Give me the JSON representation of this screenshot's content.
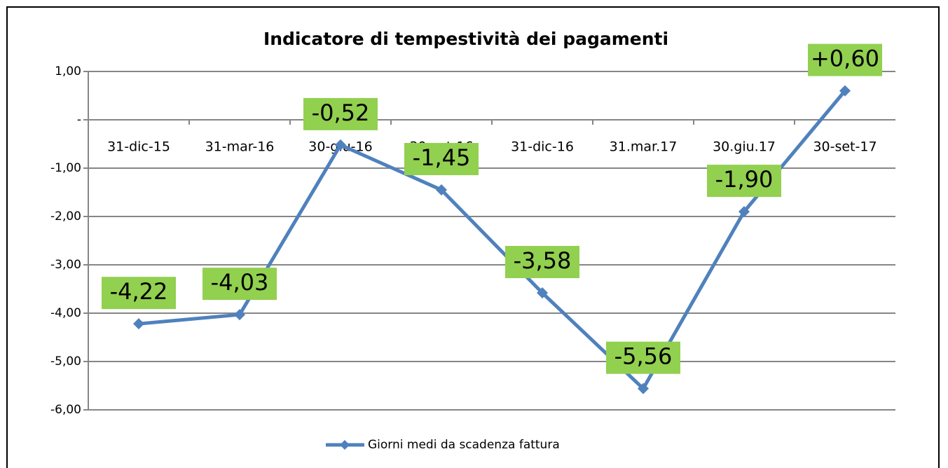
{
  "chart_data": {
    "type": "line",
    "title": "Indicatore di tempestività dei  pagamenti",
    "categories": [
      "31-dic-15",
      "31-mar-16",
      "30-giu-16",
      "30-set-16",
      "31-dic-16",
      "31.mar.17",
      "30.giu.17",
      "30-set-17"
    ],
    "series": [
      {
        "name": "Giorni medi da scadenza fattura",
        "color": "#4f81bd",
        "values": [
          -4.22,
          -4.03,
          -0.52,
          -1.45,
          -3.58,
          -5.56,
          -1.9,
          0.6
        ],
        "value_labels": [
          "-4,22",
          "-4,03",
          "-0,52",
          "-1,45",
          "-3,58",
          "-5,56",
          "-1,90",
          "+0,60"
        ]
      }
    ],
    "ylim": [
      -6,
      1
    ],
    "yticks": [
      {
        "value": 1,
        "label": "1,00"
      },
      {
        "value": 0,
        "label": "-"
      },
      {
        "value": -1,
        "label": "-1,00"
      },
      {
        "value": -2,
        "label": "-2,00"
      },
      {
        "value": -3,
        "label": "-3,00"
      },
      {
        "value": -4,
        "label": "-4,00"
      },
      {
        "value": -5,
        "label": "-5,00"
      },
      {
        "value": -6,
        "label": "-6,00"
      }
    ],
    "grid": true,
    "legend": "bottom",
    "label_color": "#92d050"
  }
}
